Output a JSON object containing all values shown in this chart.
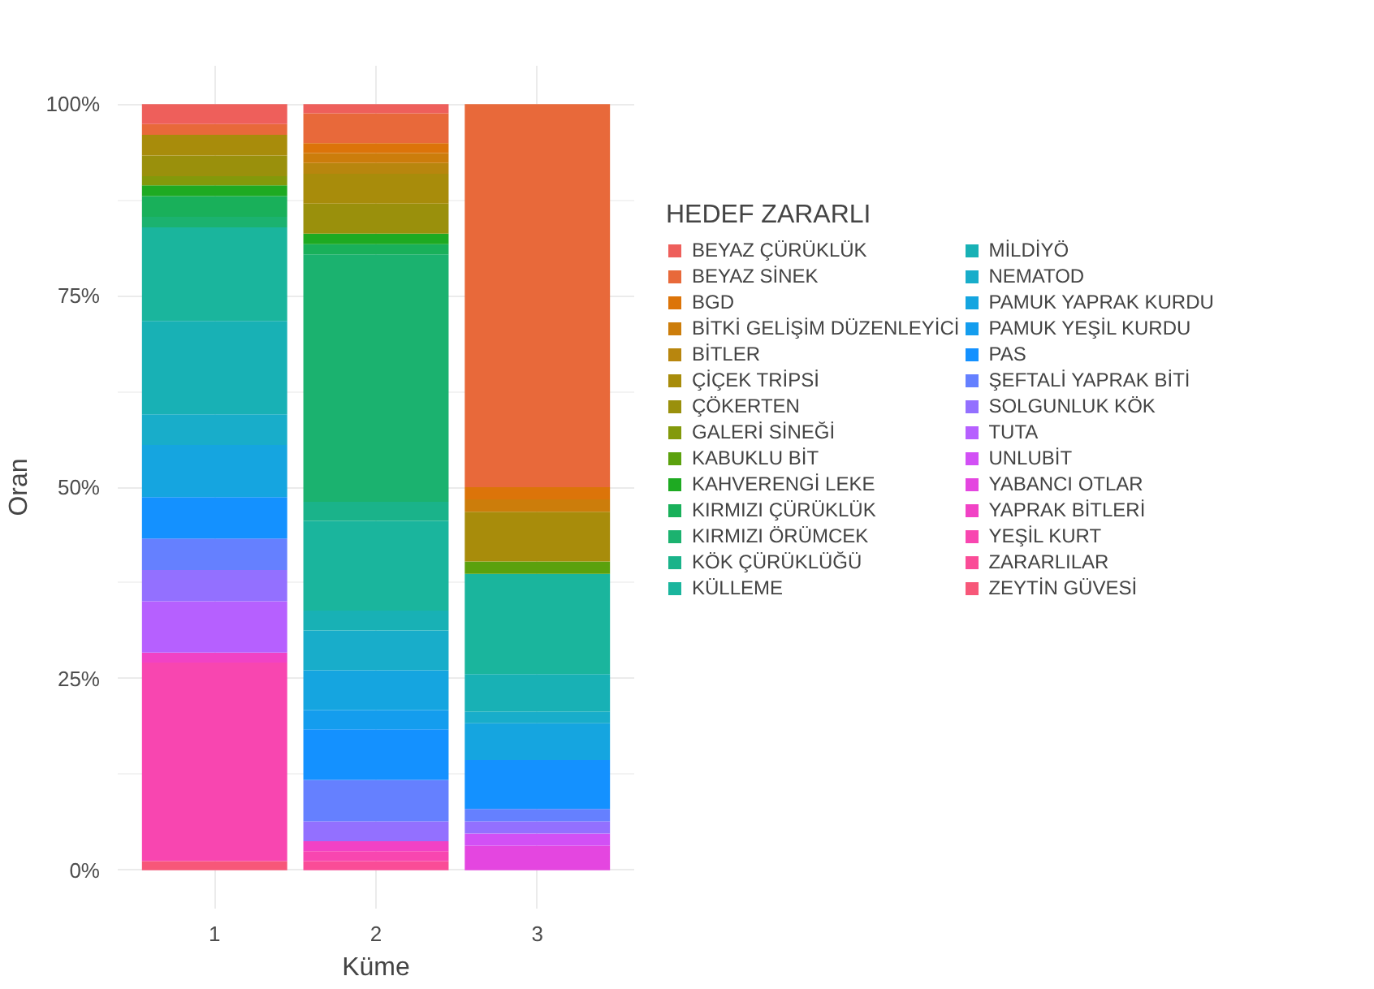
{
  "chart_data": {
    "type": "bar",
    "stacked": true,
    "xlabel": "Küme",
    "ylabel": "Oran",
    "legend_title": "HEDEF ZARARLI",
    "legend": "right",
    "grid": true,
    "categories": [
      "1",
      "2",
      "3"
    ],
    "ylim": [
      -5,
      105
    ],
    "yticks": [
      {
        "value": 0,
        "label": "0%"
      },
      {
        "value": 25,
        "label": "25%"
      },
      {
        "value": 50,
        "label": "50%"
      },
      {
        "value": 75,
        "label": "75%"
      },
      {
        "value": 100,
        "label": "100%"
      }
    ],
    "series": [
      {
        "name": "ZEYTİN GÜVESİ",
        "color": "#F75779",
        "values": [
          1.2,
          null,
          null
        ]
      },
      {
        "name": "ZARARLILAR",
        "color": "#FA4C97",
        "values": [
          null,
          1.2,
          null
        ]
      },
      {
        "name": "YEŞİL KURT",
        "color": "#F846B0",
        "values": [
          25.9,
          1.3,
          null
        ]
      },
      {
        "name": "YAPRAK BİTLERİ",
        "color": "#F142C5",
        "values": [
          1.3,
          1.3,
          null
        ]
      },
      {
        "name": "YABANCI OTLAR",
        "color": "#E446E0",
        "values": [
          null,
          null,
          3.2
        ]
      },
      {
        "name": "UNLUBİT",
        "color": "#D250F5",
        "values": [
          null,
          null,
          1.6
        ]
      },
      {
        "name": "TUTA",
        "color": "#B660FF",
        "values": [
          6.7,
          null,
          null
        ]
      },
      {
        "name": "SOLGUNLUK KÖK",
        "color": "#9370FF",
        "values": [
          4.1,
          2.6,
          1.6
        ]
      },
      {
        "name": "ŞEFTALİ YAPRAK BİTİ",
        "color": "#6580FF",
        "values": [
          4.1,
          5.4,
          1.6
        ]
      },
      {
        "name": "PAS",
        "color": "#1491FF",
        "values": [
          5.4,
          6.6,
          6.4
        ]
      },
      {
        "name": "PAMUK YEŞİL KURDU",
        "color": "#149DEE",
        "values": [
          null,
          2.5,
          null
        ]
      },
      {
        "name": "PAMUK YAPRAK KURDU",
        "color": "#15A5E0",
        "values": [
          6.8,
          5.2,
          4.8
        ]
      },
      {
        "name": "NEMATOD",
        "color": "#18ADCA",
        "values": [
          4.0,
          5.2,
          1.5
        ]
      },
      {
        "name": "MİLDİYÖ",
        "color": "#18B1B5",
        "values": [
          12.2,
          2.6,
          4.9
        ]
      },
      {
        "name": "KÜLLEME",
        "color": "#1AB59D",
        "values": [
          12.2,
          11.7,
          13.1
        ]
      },
      {
        "name": "KÖK ÇÜRÜKLÜĞÜ",
        "color": "#1AB38A",
        "values": [
          null,
          2.5,
          null
        ]
      },
      {
        "name": "KIRMIZI ÖRÜMCEK",
        "color": "#1BB26F",
        "values": [
          1.4,
          32.3,
          null
        ]
      },
      {
        "name": "KIRMIZI ÇÜRÜKLÜK",
        "color": "#19B05A",
        "values": [
          2.7,
          1.3,
          null
        ]
      },
      {
        "name": "KAHVERENGİ LEKE",
        "color": "#1EAA22",
        "values": [
          1.4,
          1.4,
          null
        ]
      },
      {
        "name": "KABUKLU BİT",
        "color": "#5BA10D",
        "values": [
          null,
          null,
          1.6
        ]
      },
      {
        "name": "GALERİ SİNEĞİ",
        "color": "#83990B",
        "values": [
          1.2,
          null,
          null
        ]
      },
      {
        "name": "ÇÖKERTEN",
        "color": "#9A900C",
        "values": [
          2.7,
          3.9,
          null
        ]
      },
      {
        "name": "ÇİÇEK TRİPSİ",
        "color": "#A88C0B",
        "values": [
          2.7,
          3.9,
          6.5
        ]
      },
      {
        "name": "BİTLER",
        "color": "#B8860E",
        "values": [
          null,
          1.4,
          null
        ]
      },
      {
        "name": "BİTKİ GELİŞİM DÜZENLEYİCİ",
        "color": "#CC7D0B",
        "values": [
          null,
          1.3,
          1.6
        ]
      },
      {
        "name": "BGD",
        "color": "#DC7409",
        "values": [
          null,
          1.3,
          1.6
        ]
      },
      {
        "name": "BEYAZ SİNEK",
        "color": "#E8693A",
        "values": [
          1.4,
          3.9,
          50.0
        ]
      },
      {
        "name": "BEYAZ ÇÜRÜKLÜK",
        "color": "#EE5F5B",
        "values": [
          2.6,
          1.2,
          null
        ]
      }
    ]
  }
}
